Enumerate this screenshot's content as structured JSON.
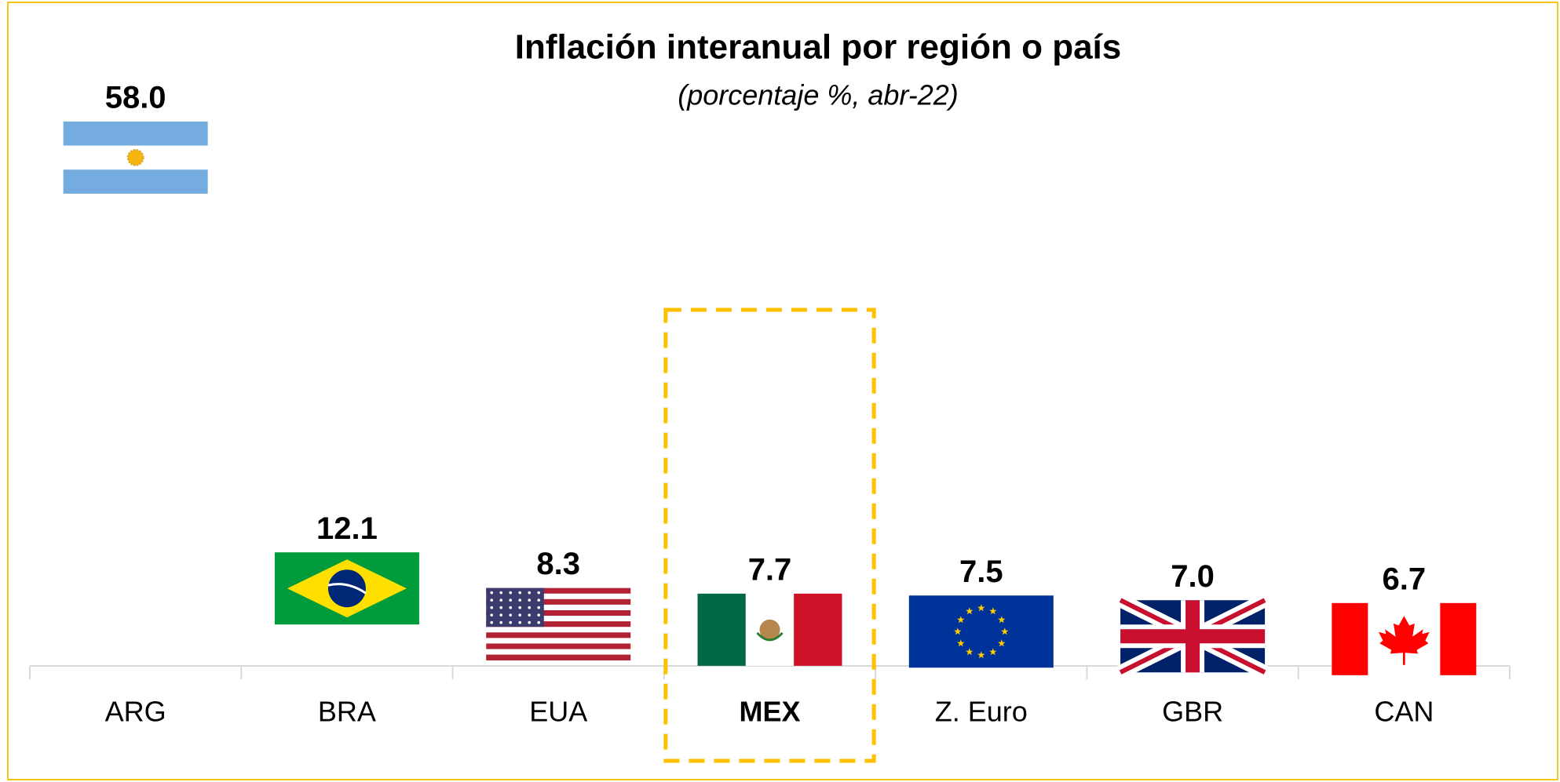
{
  "chart_data": {
    "type": "bar",
    "title": "Inflación interanual por región o país",
    "subtitle": "(porcentaje %, abr-22)",
    "categories": [
      "ARG",
      "BRA",
      "EUA",
      "MEX",
      "Z. Euro",
      "GBR",
      "CAN"
    ],
    "values": [
      58.0,
      12.1,
      8.3,
      7.7,
      7.5,
      7.0,
      6.7
    ],
    "value_labels": [
      "58.0",
      "12.1",
      "8.3",
      "7.7",
      "7.5",
      "7.0",
      "6.7"
    ],
    "ylim": [
      0,
      60
    ]
  }
}
